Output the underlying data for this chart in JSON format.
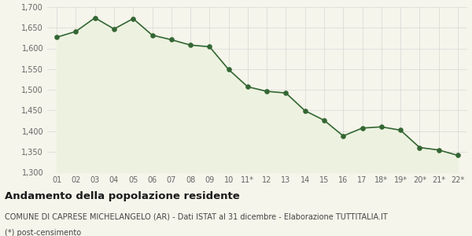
{
  "x_labels": [
    "01",
    "02",
    "03",
    "04",
    "05",
    "06",
    "07",
    "08",
    "09",
    "10",
    "11*",
    "12",
    "13",
    "14",
    "15",
    "16",
    "17",
    "18*",
    "19*",
    "20*",
    "21*",
    "22*"
  ],
  "values": [
    1627,
    1641,
    1674,
    1647,
    1672,
    1632,
    1621,
    1608,
    1604,
    1549,
    1507,
    1496,
    1492,
    1449,
    1426,
    1388,
    1407,
    1410,
    1402,
    1360,
    1354,
    1341
  ],
  "line_color": "#336633",
  "fill_color": "#edf2e0",
  "marker_color": "#336633",
  "bg_color": "#f5f5eb",
  "grid_color": "#d8d8d8",
  "ylim": [
    1300,
    1700
  ],
  "yticks": [
    1300,
    1350,
    1400,
    1450,
    1500,
    1550,
    1600,
    1650,
    1700
  ],
  "title": "Andamento della popolazione residente",
  "subtitle": "COMUNE DI CAPRESE MICHELANGELO (AR) - Dati ISTAT al 31 dicembre - Elaborazione TUTTITALIA.IT",
  "footnote": "(*) post-censimento",
  "title_fontsize": 9.5,
  "subtitle_fontsize": 7.0,
  "footnote_fontsize": 7.0,
  "tick_fontsize": 7.0,
  "axis_label_color": "#666666"
}
